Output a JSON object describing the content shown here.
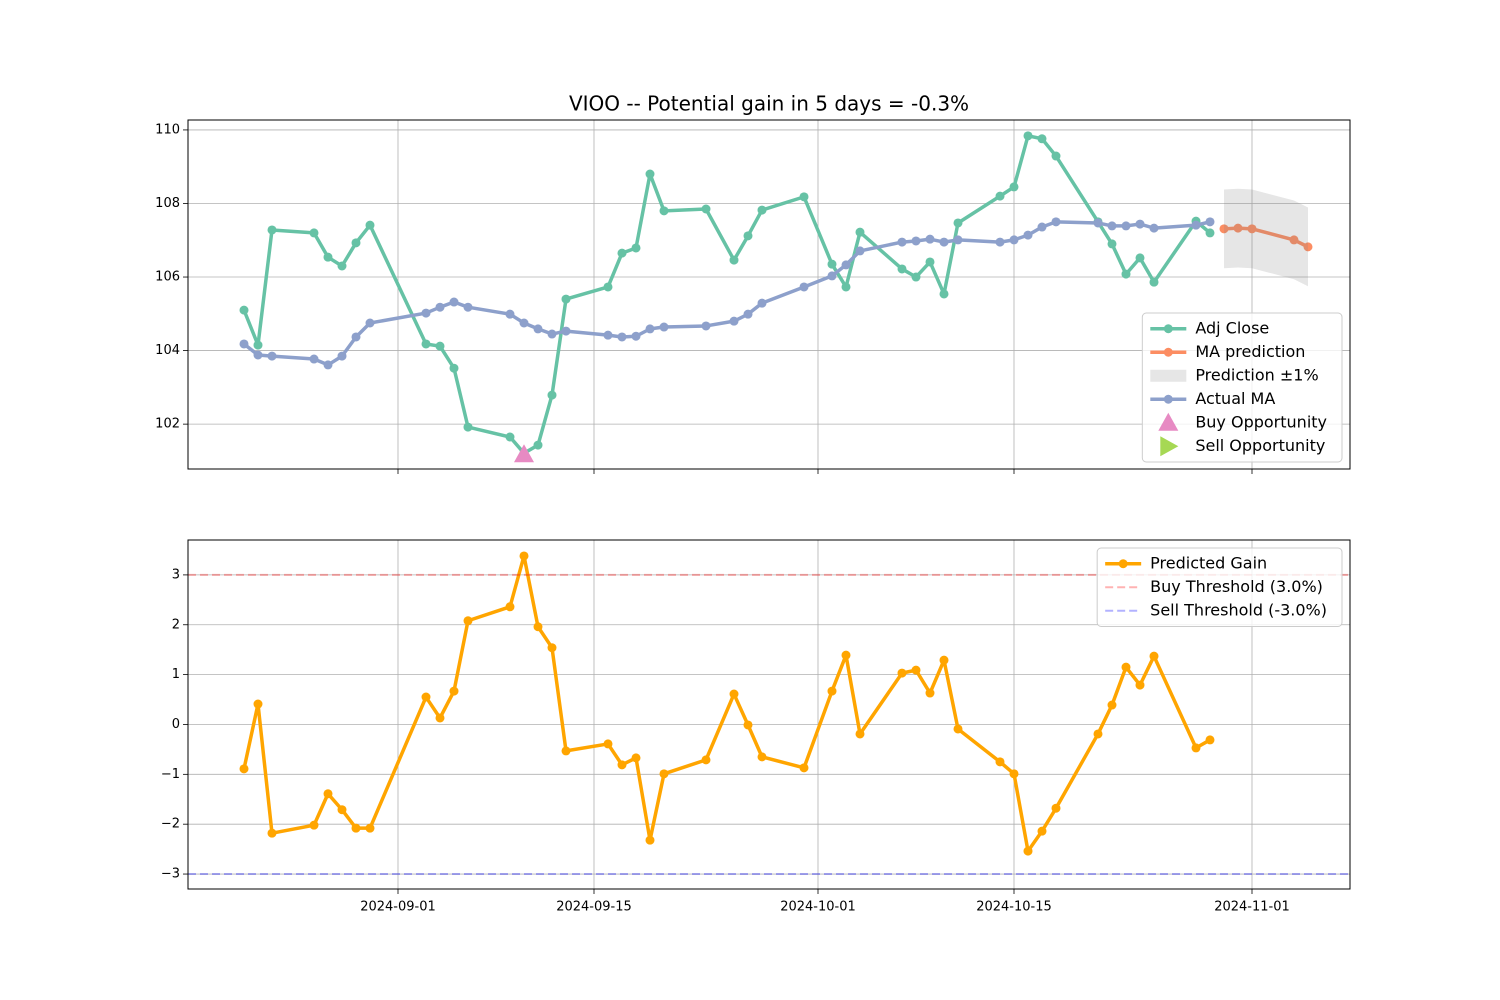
{
  "chart_data": [
    {
      "type": "line",
      "title": "VIOO -- Potential gain in 5 days = -0.3%",
      "xlim": [
        "2024-08-17",
        "2024-11-08"
      ],
      "ylim": [
        100.78,
        110.27
      ],
      "xticks": [
        "2024-09-01",
        "2024-09-15",
        "2024-10-01",
        "2024-10-15",
        "2024-11-01"
      ],
      "xtick_labels": false,
      "yticks": [
        102,
        104,
        106,
        108,
        110
      ],
      "grid": true,
      "legend": "lower right",
      "series": [
        {
          "name": "Adj Close",
          "type": "line",
          "color": "#66c2a5",
          "marker": "o",
          "x": [
            "2024-08-21",
            "2024-08-22",
            "2024-08-23",
            "2024-08-26",
            "2024-08-27",
            "2024-08-28",
            "2024-08-29",
            "2024-08-30",
            "2024-09-03",
            "2024-09-04",
            "2024-09-05",
            "2024-09-06",
            "2024-09-09",
            "2024-09-10",
            "2024-09-11",
            "2024-09-12",
            "2024-09-13",
            "2024-09-16",
            "2024-09-17",
            "2024-09-18",
            "2024-09-19",
            "2024-09-20",
            "2024-09-23",
            "2024-09-25",
            "2024-09-26",
            "2024-09-27",
            "2024-09-30",
            "2024-10-02",
            "2024-10-03",
            "2024-10-04",
            "2024-10-07",
            "2024-10-08",
            "2024-10-09",
            "2024-10-10",
            "2024-10-11",
            "2024-10-14",
            "2024-10-15",
            "2024-10-16",
            "2024-10-17",
            "2024-10-18",
            "2024-10-21",
            "2024-10-22",
            "2024-10-23",
            "2024-10-24",
            "2024-10-25",
            "2024-10-28",
            "2024-10-29"
          ],
          "values": [
            105.1,
            104.15,
            107.28,
            107.2,
            106.54,
            106.3,
            106.93,
            107.41,
            104.18,
            104.12,
            103.52,
            101.92,
            101.65,
            101.21,
            101.43,
            102.79,
            105.4,
            105.73,
            106.65,
            106.79,
            108.8,
            107.8,
            107.85,
            106.46,
            107.12,
            107.82,
            108.18,
            106.35,
            105.73,
            107.22,
            106.22,
            106.0,
            106.41,
            105.54,
            107.47,
            108.2,
            108.45,
            109.84,
            109.76,
            109.29,
            107.5,
            106.9,
            106.08,
            106.52,
            105.86,
            107.52,
            107.2
          ]
        },
        {
          "name": "MA prediction",
          "type": "line",
          "color": "#fc8d62",
          "marker": "o",
          "x": [
            "2024-10-30",
            "2024-10-31",
            "2024-11-01",
            "2024-11-04",
            "2024-11-05"
          ],
          "values": [
            107.31,
            107.33,
            107.31,
            107.01,
            106.82
          ]
        },
        {
          "name": "Prediction ±1%",
          "type": "band",
          "color": "gray",
          "alpha": 0.2,
          "x": [
            "2024-10-30",
            "2024-10-31",
            "2024-11-01",
            "2024-11-04",
            "2024-11-05"
          ],
          "lower": [
            106.24,
            106.26,
            106.24,
            105.94,
            105.75
          ],
          "upper": [
            108.38,
            108.4,
            108.38,
            108.08,
            107.89
          ]
        },
        {
          "name": "Actual MA",
          "type": "line",
          "color": "#8da0cb",
          "marker": "o",
          "x": [
            "2024-08-21",
            "2024-08-22",
            "2024-08-23",
            "2024-08-26",
            "2024-08-27",
            "2024-08-28",
            "2024-08-29",
            "2024-08-30",
            "2024-09-03",
            "2024-09-04",
            "2024-09-05",
            "2024-09-06",
            "2024-09-09",
            "2024-09-10",
            "2024-09-11",
            "2024-09-12",
            "2024-09-13",
            "2024-09-16",
            "2024-09-17",
            "2024-09-18",
            "2024-09-19",
            "2024-09-20",
            "2024-09-23",
            "2024-09-25",
            "2024-09-26",
            "2024-09-27",
            "2024-09-30",
            "2024-10-02",
            "2024-10-03",
            "2024-10-04",
            "2024-10-07",
            "2024-10-08",
            "2024-10-09",
            "2024-10-10",
            "2024-10-11",
            "2024-10-14",
            "2024-10-15",
            "2024-10-16",
            "2024-10-17",
            "2024-10-18",
            "2024-10-21",
            "2024-10-22",
            "2024-10-23",
            "2024-10-24",
            "2024-10-25",
            "2024-10-28",
            "2024-10-29"
          ],
          "values": [
            104.18,
            103.88,
            103.85,
            103.77,
            103.61,
            103.85,
            104.37,
            104.75,
            105.02,
            105.18,
            105.32,
            105.18,
            104.99,
            104.75,
            104.59,
            104.45,
            104.53,
            104.42,
            104.37,
            104.39,
            104.59,
            104.64,
            104.67,
            104.8,
            104.99,
            105.29,
            105.73,
            106.03,
            106.33,
            106.71,
            106.95,
            106.98,
            107.03,
            106.95,
            107.01,
            106.95,
            107.01,
            107.14,
            107.36,
            107.5,
            107.47,
            107.39,
            107.39,
            107.44,
            107.33,
            107.41,
            107.5
          ]
        },
        {
          "name": "Buy Opportunity",
          "type": "scatter",
          "color": "#e78ac3",
          "marker": "^",
          "x": [
            "2024-09-10"
          ],
          "values": [
            101.18
          ]
        },
        {
          "name": "Sell Opportunity",
          "type": "scatter",
          "color": "#a6d854",
          "marker": ">",
          "x": [],
          "values": []
        }
      ]
    },
    {
      "type": "line",
      "xlim": [
        "2024-08-17",
        "2024-11-08"
      ],
      "ylim": [
        -3.3,
        3.7
      ],
      "xticks": [
        "2024-09-01",
        "2024-09-15",
        "2024-10-01",
        "2024-10-15",
        "2024-11-01"
      ],
      "xtick_labels": true,
      "yticks": [
        {
          "value": -3,
          "label": "−3"
        },
        {
          "value": -2,
          "label": "−2"
        },
        {
          "value": -1,
          "label": "−1"
        },
        0,
        1,
        2,
        3
      ],
      "grid": true,
      "legend": "upper right",
      "series": [
        {
          "name": "Predicted Gain",
          "type": "line",
          "color": "orange",
          "marker": "o",
          "x": [
            "2024-08-21",
            "2024-08-22",
            "2024-08-23",
            "2024-08-26",
            "2024-08-27",
            "2024-08-28",
            "2024-08-29",
            "2024-08-30",
            "2024-09-03",
            "2024-09-04",
            "2024-09-05",
            "2024-09-06",
            "2024-09-09",
            "2024-09-10",
            "2024-09-11",
            "2024-09-12",
            "2024-09-13",
            "2024-09-16",
            "2024-09-17",
            "2024-09-18",
            "2024-09-19",
            "2024-09-20",
            "2024-09-23",
            "2024-09-25",
            "2024-09-26",
            "2024-09-27",
            "2024-09-30",
            "2024-10-02",
            "2024-10-03",
            "2024-10-04",
            "2024-10-07",
            "2024-10-08",
            "2024-10-09",
            "2024-10-10",
            "2024-10-11",
            "2024-10-14",
            "2024-10-15",
            "2024-10-16",
            "2024-10-17",
            "2024-10-18",
            "2024-10-21",
            "2024-10-22",
            "2024-10-23",
            "2024-10-24",
            "2024-10-25",
            "2024-10-28",
            "2024-10-29"
          ],
          "values": [
            -0.89,
            0.41,
            -2.18,
            -2.02,
            -1.39,
            -1.71,
            -2.08,
            -2.08,
            0.55,
            0.13,
            0.67,
            2.08,
            2.36,
            3.38,
            1.96,
            1.54,
            -0.53,
            -0.39,
            -0.81,
            -0.67,
            -2.32,
            -0.99,
            -0.71,
            0.61,
            -0.01,
            -0.65,
            -0.87,
            0.67,
            1.39,
            -0.19,
            1.03,
            1.09,
            0.63,
            1.29,
            -0.09,
            -0.75,
            -0.99,
            -2.54,
            -2.14,
            -1.68,
            -0.19,
            0.39,
            1.15,
            0.79,
            1.37,
            -0.47,
            -0.31
          ]
        },
        {
          "name": "Buy Threshold (3.0%)",
          "type": "hline",
          "color": "red",
          "alpha": 0.3,
          "value": 3
        },
        {
          "name": "Sell Threshold (-3.0%)",
          "type": "hline",
          "color": "blue",
          "alpha": 0.3,
          "value": -3
        }
      ]
    }
  ]
}
